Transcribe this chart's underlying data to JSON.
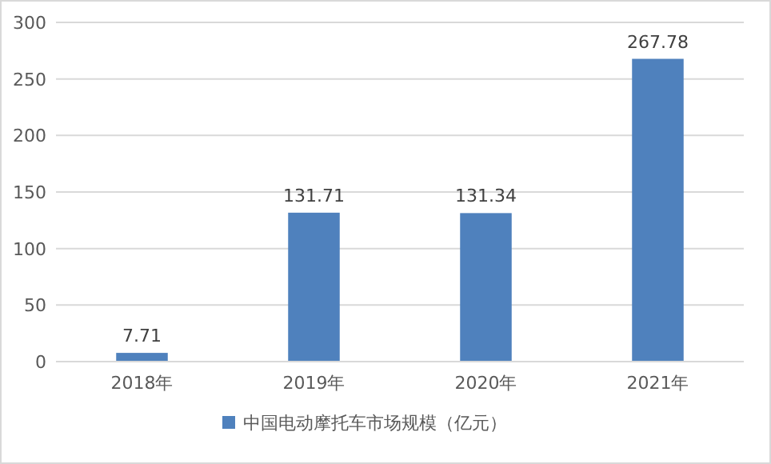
{
  "chart_data": {
    "type": "bar",
    "categories": [
      "2018年",
      "2019年",
      "2020年",
      "2021年"
    ],
    "series": [
      {
        "name": "中国电动摩托车市场规模（亿元）",
        "color": "#4f81bd",
        "values": [
          7.71,
          131.71,
          131.34,
          267.78
        ]
      }
    ],
    "ylim": [
      0,
      300
    ],
    "yticks": [
      0,
      50,
      100,
      150,
      200,
      250,
      300
    ],
    "grid": "y",
    "legend": "bottom",
    "data_labels": true
  }
}
